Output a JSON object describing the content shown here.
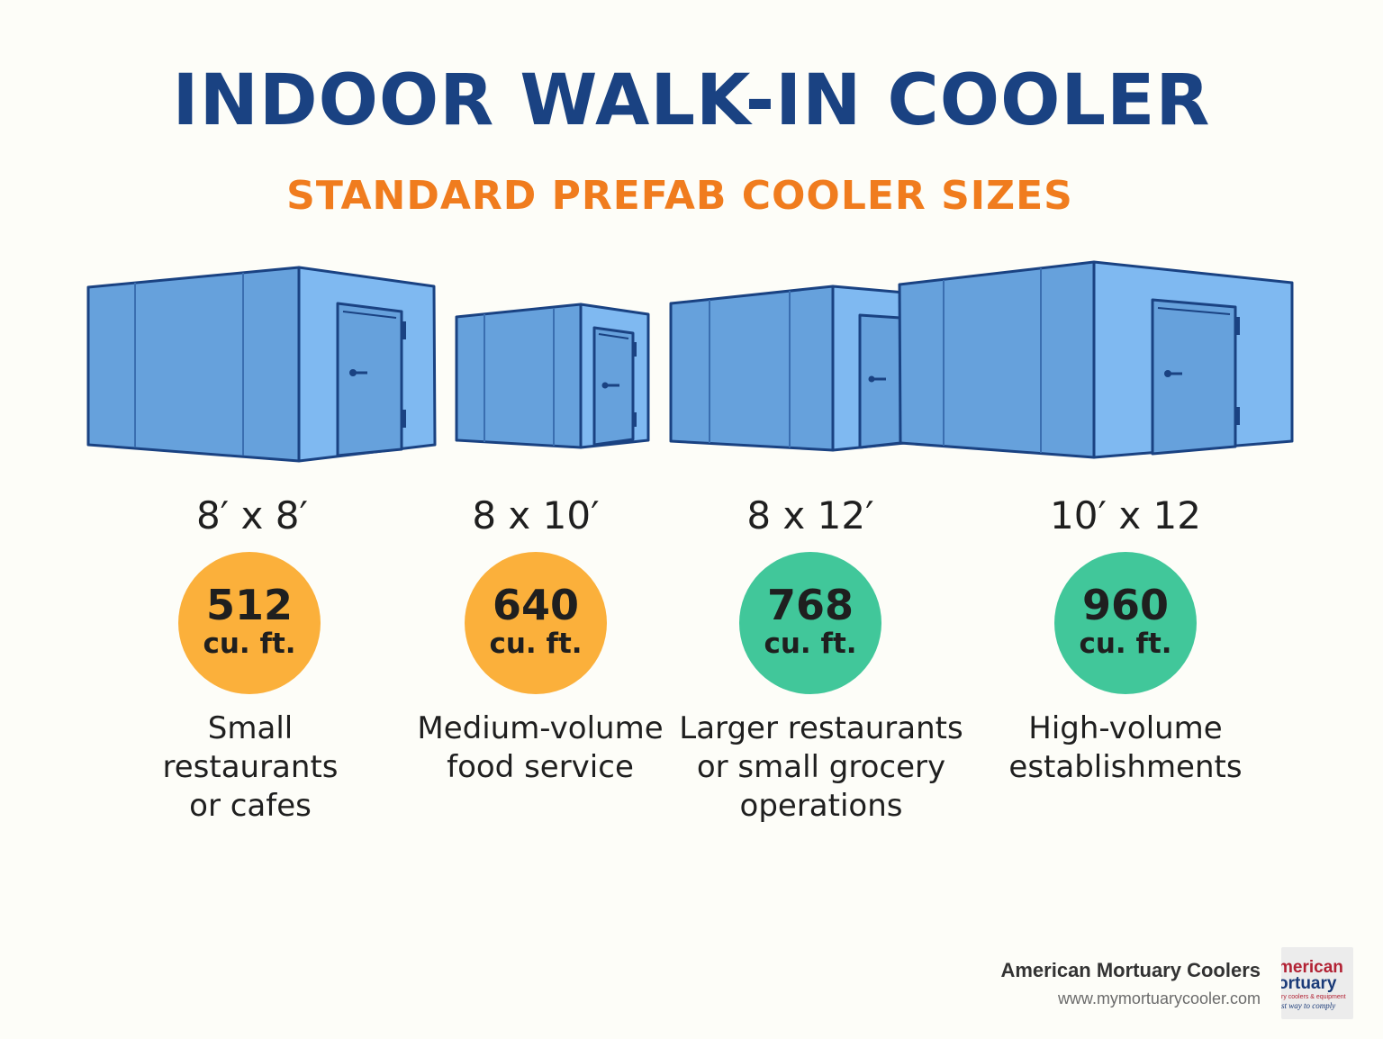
{
  "header": {
    "title": "INDOOR WALK-IN COOLER",
    "subtitle": "STANDARD PREFAB COOLER SIZES"
  },
  "coolers": [
    {
      "dimension": "8′ x 8′",
      "volume": "512",
      "unit": "cu. ft.",
      "use_lines": [
        "Small",
        "restaurants",
        "or cafes"
      ],
      "badge_color": "#fbb03b"
    },
    {
      "dimension": "8 x 10′",
      "volume": "640",
      "unit": "cu. ft.",
      "use_lines": [
        "Medium-volume",
        "food service"
      ],
      "badge_color": "#fbb03b"
    },
    {
      "dimension": "8 x 12′",
      "volume": "768",
      "unit": "cu. ft.",
      "use_lines": [
        "Larger restaurants",
        "or small grocery",
        "operations"
      ],
      "badge_color": "#41c79a"
    },
    {
      "dimension": "10′ x 12",
      "volume": "960",
      "unit": "cu. ft.",
      "use_lines": [
        "High-volume",
        "establishments"
      ],
      "badge_color": "#41c79a"
    }
  ],
  "colors": {
    "title": "#1a4282",
    "subtitle": "#f07c1e",
    "box_front": "#66a1dc",
    "box_side": "#7fb9f1",
    "box_stroke": "#1a4282"
  },
  "footer": {
    "brand_name": "American Mortuary Coolers",
    "brand_url": "www.mymortuarycooler.com",
    "logo_line1": "merican",
    "logo_line2": "ortuary",
    "logo_line3": "ry coolers & equipment",
    "logo_line4": "st way to comply"
  }
}
